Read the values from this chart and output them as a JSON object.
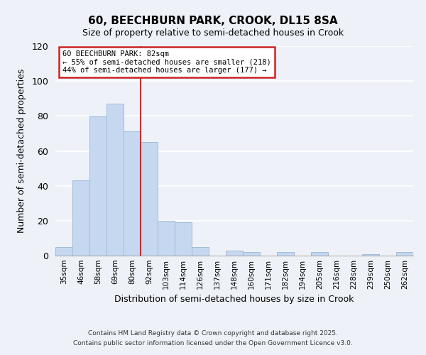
{
  "title": "60, BEECHBURN PARK, CROOK, DL15 8SA",
  "subtitle": "Size of property relative to semi-detached houses in Crook",
  "xlabel": "Distribution of semi-detached houses by size in Crook",
  "ylabel": "Number of semi-detached properties",
  "bin_labels": [
    "35sqm",
    "46sqm",
    "58sqm",
    "69sqm",
    "80sqm",
    "92sqm",
    "103sqm",
    "114sqm",
    "126sqm",
    "137sqm",
    "148sqm",
    "160sqm",
    "171sqm",
    "182sqm",
    "194sqm",
    "205sqm",
    "216sqm",
    "228sqm",
    "239sqm",
    "250sqm",
    "262sqm"
  ],
  "bar_values": [
    5,
    43,
    80,
    87,
    71,
    65,
    20,
    19,
    5,
    0,
    3,
    2,
    0,
    2,
    0,
    2,
    0,
    0,
    1,
    0,
    2
  ],
  "bar_color": "#c5d8f0",
  "bar_edge_color": "#a0bcd8",
  "vline_x": 4.5,
  "vline_color": "red",
  "ylim": [
    0,
    120
  ],
  "yticks": [
    0,
    20,
    40,
    60,
    80,
    100,
    120
  ],
  "annotation_title": "60 BEECHBURN PARK: 82sqm",
  "annotation_line2": "← 55% of semi-detached houses are smaller (218)",
  "annotation_line3": "44% of semi-detached houses are larger (177) →",
  "footer1": "Contains HM Land Registry data © Crown copyright and database right 2025.",
  "footer2": "Contains public sector information licensed under the Open Government Licence v3.0.",
  "background_color": "#eef2f8"
}
